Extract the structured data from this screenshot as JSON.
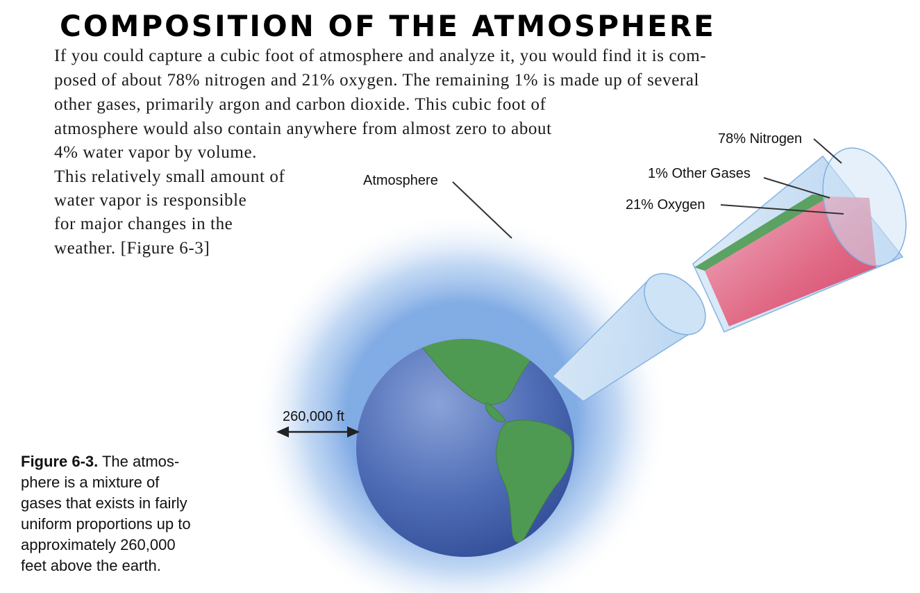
{
  "title": "COMPOSITION OF THE ATMOSPHERE",
  "paragraph_lines": [
    "If you could capture a cubic foot of atmosphere and analyze it, you would find it is com-",
    "posed of about 78% nitrogen and 21% oxygen. The remaining 1% is made up of several",
    "other gases, primarily argon and carbon dioxide. This cubic foot of",
    "atmosphere would also contain anywhere from almost zero to about",
    "4% water vapor by volume.",
    "This relatively small amount of",
    "water vapor is responsible",
    "for major changes in the",
    "weather. [Figure 6-3]"
  ],
  "labels": {
    "atmosphere": "Atmosphere",
    "nitrogen": "78% Nitrogen",
    "other_gases": "1% Other Gases",
    "oxygen": "21% Oxygen",
    "altitude": "260,000 ft"
  },
  "caption": {
    "figure": "Figure 6-3.",
    "lines": [
      " The atmos-",
      "phere is a mixture of",
      "gases that exists in fairly",
      "uniform proportions up to",
      "approximately 260,000",
      "feet above the earth."
    ]
  },
  "colors": {
    "ocean": "#4a6bb5",
    "land": "#4f9a52",
    "halo": "#8fb8ea",
    "oxygen": "#e0506e",
    "nitrogen_band": "#4f9a52",
    "cone": "#bcd8f2"
  },
  "icons": [
    "double-arrow-icon"
  ]
}
